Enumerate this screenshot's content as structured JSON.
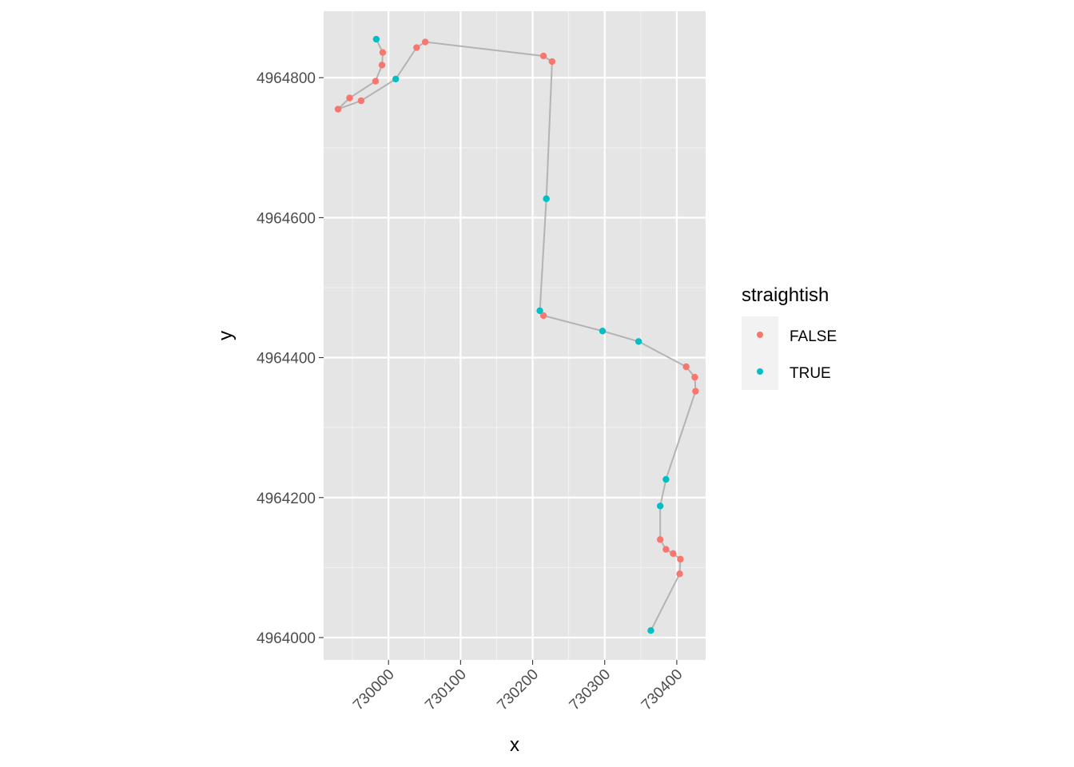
{
  "chart_data": {
    "type": "scatter",
    "xlabel": "x",
    "ylabel": "y",
    "xlim": [
      729910,
      730440
    ],
    "ylim": [
      4963968,
      4964895
    ],
    "x_ticks": [
      730000,
      730100,
      730200,
      730300,
      730400
    ],
    "y_ticks": [
      4964000,
      4964200,
      4964400,
      4964600,
      4964800
    ],
    "x_tick_labels": [
      "730000",
      "730100",
      "730200",
      "730300",
      "730400"
    ],
    "y_tick_labels": [
      "4964000",
      "4964200",
      "4964400",
      "4964600",
      "4964800"
    ],
    "grid": true,
    "path_connected": true,
    "legend": {
      "title": "straightish",
      "position": "right",
      "entries": [
        {
          "label": "FALSE",
          "color": "#F8766D"
        },
        {
          "label": "TRUE",
          "color": "#00BFC4"
        }
      ]
    },
    "colors": {
      "FALSE": "#F8766D",
      "TRUE": "#00BFC4",
      "path": "#b3b3b3",
      "panel": "#e5e5e5",
      "grid": "#ffffff"
    },
    "points": [
      {
        "x": 729983,
        "y": 4964855,
        "straightish": "TRUE"
      },
      {
        "x": 729992,
        "y": 4964836,
        "straightish": "FALSE"
      },
      {
        "x": 729991,
        "y": 4964818,
        "straightish": "FALSE"
      },
      {
        "x": 729982,
        "y": 4964795,
        "straightish": "FALSE"
      },
      {
        "x": 729946,
        "y": 4964771,
        "straightish": "FALSE"
      },
      {
        "x": 729930,
        "y": 4964755,
        "straightish": "FALSE"
      },
      {
        "x": 729962,
        "y": 4964767,
        "straightish": "FALSE"
      },
      {
        "x": 730010,
        "y": 4964798,
        "straightish": "TRUE"
      },
      {
        "x": 730039,
        "y": 4964843,
        "straightish": "FALSE"
      },
      {
        "x": 730051,
        "y": 4964851,
        "straightish": "FALSE"
      },
      {
        "x": 730215,
        "y": 4964831,
        "straightish": "FALSE"
      },
      {
        "x": 730227,
        "y": 4964823,
        "straightish": "FALSE"
      },
      {
        "x": 730219,
        "y": 4964627,
        "straightish": "TRUE"
      },
      {
        "x": 730210,
        "y": 4964467,
        "straightish": "TRUE"
      },
      {
        "x": 730215,
        "y": 4964460,
        "straightish": "FALSE"
      },
      {
        "x": 730297,
        "y": 4964438,
        "straightish": "TRUE"
      },
      {
        "x": 730347,
        "y": 4964423,
        "straightish": "TRUE"
      },
      {
        "x": 730413,
        "y": 4964387,
        "straightish": "FALSE"
      },
      {
        "x": 730425,
        "y": 4964372,
        "straightish": "FALSE"
      },
      {
        "x": 730426,
        "y": 4964352,
        "straightish": "FALSE"
      },
      {
        "x": 730385,
        "y": 4964226,
        "straightish": "TRUE"
      },
      {
        "x": 730377,
        "y": 4964188,
        "straightish": "TRUE"
      },
      {
        "x": 730377,
        "y": 4964140,
        "straightish": "FALSE"
      },
      {
        "x": 730385,
        "y": 4964126,
        "straightish": "FALSE"
      },
      {
        "x": 730395,
        "y": 4964120,
        "straightish": "FALSE"
      },
      {
        "x": 730405,
        "y": 4964112,
        "straightish": "FALSE"
      },
      {
        "x": 730404,
        "y": 4964091,
        "straightish": "FALSE"
      },
      {
        "x": 730364,
        "y": 4964010,
        "straightish": "TRUE"
      }
    ]
  }
}
